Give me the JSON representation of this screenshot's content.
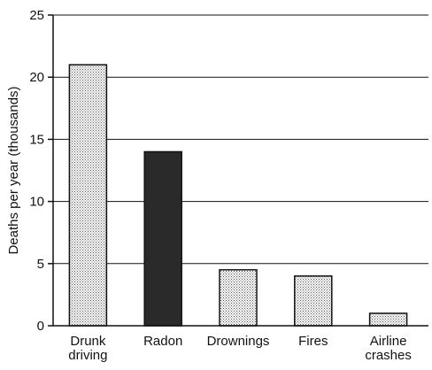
{
  "chart_data": {
    "type": "bar",
    "title": "",
    "xlabel": "",
    "ylabel": "Deaths per year (thousands)",
    "ylim": [
      0,
      25
    ],
    "yticks": [
      0,
      5,
      10,
      15,
      20,
      25
    ],
    "grid": true,
    "categories": [
      [
        "Drunk",
        "driving"
      ],
      [
        "Radon"
      ],
      [
        "Drownings"
      ],
      [
        "Fires"
      ],
      [
        "Airline",
        "crashes"
      ]
    ],
    "values": [
      21,
      14,
      4.5,
      4,
      1
    ],
    "bar_styles": [
      "stippled",
      "solid",
      "stippled",
      "stippled",
      "stippled"
    ],
    "colors": {
      "solid": "#2a2a2a",
      "stipple_bg": "#ffffff",
      "stipple_dot": "#555555",
      "axis": "#111111",
      "grid": "#111111"
    }
  }
}
